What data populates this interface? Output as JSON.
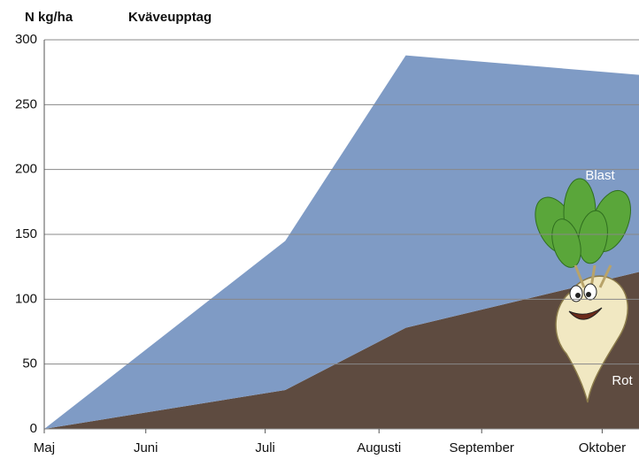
{
  "chart_data": {
    "type": "stacked-area",
    "title": "Kväveupptag",
    "y_label": "N kg/ha",
    "x": [
      0,
      2.16,
      3.24,
      5.33
    ],
    "xlim": [
      0,
      5.33
    ],
    "xticks": [
      {
        "value": 0,
        "label": "Maj"
      },
      {
        "value": 0.91,
        "label": "Juni"
      },
      {
        "value": 1.98,
        "label": "Juli"
      },
      {
        "value": 3.0,
        "label": "Augusti"
      },
      {
        "value": 3.92,
        "label": "September"
      },
      {
        "value": 5.0,
        "label": "Oktober"
      }
    ],
    "ylim": [
      0,
      300
    ],
    "yticks": [
      0,
      50,
      100,
      150,
      200,
      250,
      300
    ],
    "grid": true,
    "series": [
      {
        "name": "Rot",
        "color": "#5e4b40",
        "values": [
          0,
          30,
          78,
          121
        ]
      },
      {
        "name": "Blast",
        "color": "#7f9bc5",
        "values": [
          0,
          115,
          210,
          152
        ]
      }
    ]
  }
}
